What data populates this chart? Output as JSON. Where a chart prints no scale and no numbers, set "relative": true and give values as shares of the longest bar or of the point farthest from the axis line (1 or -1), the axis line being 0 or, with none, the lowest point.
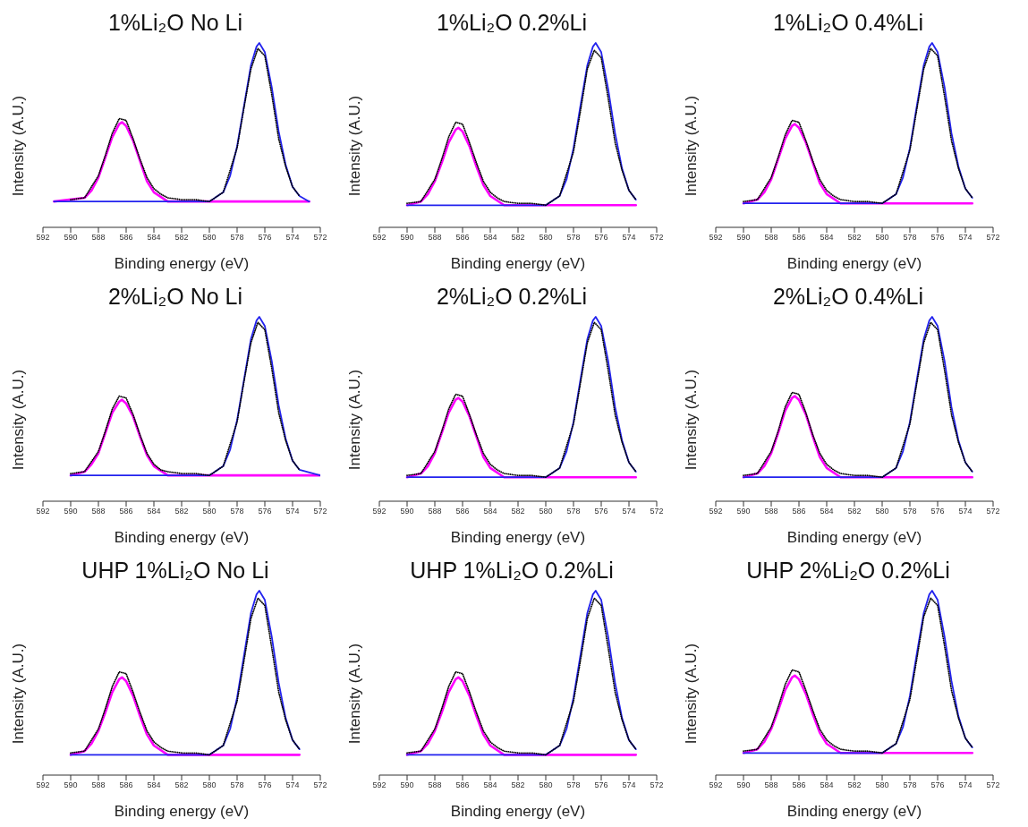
{
  "chart_data": [
    {
      "type": "line",
      "title": "1%Li₂O No Li",
      "xlabel": "Binding energy (eV)",
      "ylabel": "Intensity (A.U.)",
      "relative": true,
      "xlim": [
        592,
        572
      ],
      "xticks": [
        592,
        590,
        588,
        586,
        584,
        582,
        580,
        578,
        576,
        574,
        572
      ],
      "series": [
        {
          "color": "#ff00ff",
          "x": [
            591.2,
            589,
            588.5,
            588,
            587.5,
            587,
            586.5,
            586.3,
            586,
            585.5,
            585,
            584.5,
            584,
            583,
            572.8
          ],
          "values": [
            0.14,
            0.16,
            0.2,
            0.27,
            0.38,
            0.49,
            0.56,
            0.57,
            0.55,
            0.47,
            0.36,
            0.25,
            0.19,
            0.14,
            0.14
          ]
        },
        {
          "color": "#2222ee",
          "x": [
            591.2,
            580,
            579,
            578.5,
            578,
            577.5,
            577,
            576.6,
            576.4,
            576,
            575.5,
            575,
            574.5,
            574,
            573.5,
            572.8
          ],
          "values": [
            0.14,
            0.14,
            0.19,
            0.28,
            0.44,
            0.66,
            0.88,
            0.98,
            1,
            0.95,
            0.76,
            0.52,
            0.34,
            0.22,
            0.17,
            0.14
          ]
        },
        {
          "line_style": "dotted",
          "color": "#000000",
          "x": [
            590,
            589,
            588,
            587.5,
            587,
            586.5,
            586,
            585.5,
            585,
            584.5,
            584,
            583.5,
            583,
            582,
            581,
            580,
            579,
            578,
            577.5,
            577,
            576.5,
            576,
            575.5,
            575,
            574.5,
            574,
            573.5
          ],
          "values": [
            0.15,
            0.16,
            0.28,
            0.39,
            0.51,
            0.59,
            0.58,
            0.48,
            0.37,
            0.27,
            0.21,
            0.18,
            0.16,
            0.15,
            0.15,
            0.14,
            0.19,
            0.43,
            0.65,
            0.86,
            0.97,
            0.93,
            0.72,
            0.48,
            0.33,
            0.22,
            0.17
          ]
        }
      ]
    },
    {
      "type": "line",
      "title": "1%Li₂O 0.2%Li",
      "xlabel": "Binding energy (eV)",
      "ylabel": "Intensity (A.U.)",
      "relative": true,
      "xlim": [
        592,
        572
      ],
      "xticks": [
        592,
        590,
        588,
        586,
        584,
        582,
        580,
        578,
        576,
        574,
        572
      ],
      "series": [
        {
          "color": "#ff00ff",
          "x": [
            590,
            589,
            588.5,
            588,
            587.5,
            587,
            586.5,
            586.3,
            586,
            585.5,
            585,
            584.5,
            584,
            583,
            573.5
          ],
          "values": [
            0.12,
            0.14,
            0.18,
            0.25,
            0.35,
            0.46,
            0.53,
            0.54,
            0.52,
            0.44,
            0.33,
            0.23,
            0.17,
            0.12,
            0.12
          ]
        },
        {
          "color": "#2222ee",
          "x": [
            590,
            580,
            579,
            578.5,
            578,
            577.5,
            577,
            576.6,
            576.4,
            576,
            575.5,
            575,
            574.5,
            574,
            573.5
          ],
          "values": [
            0.12,
            0.12,
            0.17,
            0.26,
            0.43,
            0.66,
            0.88,
            0.98,
            1,
            0.95,
            0.75,
            0.51,
            0.32,
            0.2,
            0.15
          ]
        },
        {
          "line_style": "dotted",
          "color": "#000000",
          "x": [
            590,
            589,
            588,
            587.5,
            587,
            586.5,
            586,
            585.5,
            585,
            584.5,
            584,
            583.5,
            583,
            582,
            581,
            580,
            579,
            578,
            577.5,
            577,
            576.5,
            576,
            575.5,
            575,
            574.5,
            574,
            573.5
          ],
          "values": [
            0.13,
            0.14,
            0.26,
            0.37,
            0.49,
            0.57,
            0.56,
            0.46,
            0.35,
            0.25,
            0.19,
            0.16,
            0.14,
            0.13,
            0.13,
            0.12,
            0.17,
            0.41,
            0.63,
            0.86,
            0.96,
            0.92,
            0.7,
            0.46,
            0.31,
            0.2,
            0.15
          ]
        }
      ]
    },
    {
      "type": "line",
      "title": "1%Li₂O 0.4%Li",
      "xlabel": "Binding energy (eV)",
      "ylabel": "Intensity (A.U.)",
      "relative": true,
      "xlim": [
        592,
        572
      ],
      "xticks": [
        592,
        590,
        588,
        586,
        584,
        582,
        580,
        578,
        576,
        574,
        572
      ],
      "series": [
        {
          "color": "#ff00ff",
          "x": [
            590,
            589,
            588.5,
            588,
            587.5,
            587,
            586.5,
            586.3,
            586,
            585.5,
            585,
            584.5,
            584,
            583,
            573.5
          ],
          "values": [
            0.13,
            0.15,
            0.19,
            0.26,
            0.37,
            0.48,
            0.55,
            0.56,
            0.54,
            0.46,
            0.35,
            0.24,
            0.18,
            0.13,
            0.13
          ]
        },
        {
          "color": "#2222ee",
          "x": [
            590,
            580,
            579,
            578.5,
            578,
            577.5,
            577,
            576.6,
            576.4,
            576,
            575.5,
            575,
            574.5,
            574,
            573.5
          ],
          "values": [
            0.13,
            0.13,
            0.18,
            0.27,
            0.43,
            0.66,
            0.88,
            0.98,
            1,
            0.95,
            0.76,
            0.51,
            0.33,
            0.21,
            0.16
          ]
        },
        {
          "line_style": "dotted",
          "color": "#000000",
          "x": [
            590,
            589,
            588,
            587.5,
            587,
            586.5,
            586,
            585.5,
            585,
            584.5,
            584,
            583.5,
            583,
            582,
            581,
            580,
            579,
            578,
            577.5,
            577,
            576.5,
            576,
            575.5,
            575,
            574.5,
            574,
            573.5
          ],
          "values": [
            0.14,
            0.15,
            0.27,
            0.38,
            0.5,
            0.58,
            0.57,
            0.47,
            0.36,
            0.26,
            0.2,
            0.17,
            0.15,
            0.14,
            0.14,
            0.13,
            0.18,
            0.42,
            0.64,
            0.86,
            0.97,
            0.93,
            0.71,
            0.47,
            0.32,
            0.21,
            0.16
          ]
        }
      ]
    },
    {
      "type": "line",
      "title": "2%Li₂O No Li",
      "xlabel": "Binding energy (eV)",
      "ylabel": "Intensity (A.U.)",
      "relative": true,
      "xlim": [
        592,
        572
      ],
      "xticks": [
        592,
        590,
        588,
        586,
        584,
        582,
        580,
        578,
        576,
        574,
        572
      ],
      "series": [
        {
          "color": "#ff00ff",
          "x": [
            590,
            589,
            588.5,
            588,
            587.5,
            587,
            586.5,
            586.3,
            586,
            585.5,
            585,
            584.5,
            584,
            583,
            572
          ],
          "values": [
            0.14,
            0.16,
            0.2,
            0.26,
            0.37,
            0.48,
            0.54,
            0.55,
            0.53,
            0.46,
            0.35,
            0.25,
            0.19,
            0.14,
            0.14
          ]
        },
        {
          "color": "#2222ee",
          "x": [
            590,
            580,
            579,
            578.5,
            578,
            577.5,
            577,
            576.6,
            576.4,
            576,
            575.5,
            575,
            574.5,
            574,
            573.5,
            572
          ],
          "values": [
            0.14,
            0.14,
            0.19,
            0.28,
            0.44,
            0.66,
            0.88,
            0.98,
            1,
            0.95,
            0.76,
            0.52,
            0.34,
            0.22,
            0.17,
            0.14
          ]
        },
        {
          "line_style": "dotted",
          "color": "#000000",
          "x": [
            590,
            589,
            588,
            587.5,
            587,
            586.5,
            586,
            585.5,
            585,
            584.5,
            584,
            583.5,
            583,
            582,
            581,
            580,
            579,
            578,
            577.5,
            577,
            576.5,
            576,
            575.5,
            575,
            574.5,
            574,
            573.5
          ],
          "values": [
            0.15,
            0.16,
            0.27,
            0.38,
            0.5,
            0.57,
            0.56,
            0.47,
            0.36,
            0.26,
            0.2,
            0.17,
            0.16,
            0.15,
            0.15,
            0.14,
            0.19,
            0.43,
            0.65,
            0.86,
            0.97,
            0.93,
            0.72,
            0.48,
            0.33,
            0.22,
            0.17
          ]
        }
      ]
    },
    {
      "type": "line",
      "title": "2%Li₂O 0.2%Li",
      "xlabel": "Binding energy (eV)",
      "ylabel": "Intensity (A.U.)",
      "relative": true,
      "xlim": [
        592,
        572
      ],
      "xticks": [
        592,
        590,
        588,
        586,
        584,
        582,
        580,
        578,
        576,
        574,
        572
      ],
      "series": [
        {
          "color": "#ff00ff",
          "x": [
            590,
            589,
            588.5,
            588,
            587.5,
            587,
            586.5,
            586.3,
            586,
            585.5,
            585,
            584.5,
            584,
            583,
            573.5
          ],
          "values": [
            0.13,
            0.15,
            0.19,
            0.26,
            0.37,
            0.48,
            0.55,
            0.56,
            0.54,
            0.46,
            0.35,
            0.24,
            0.18,
            0.13,
            0.13
          ]
        },
        {
          "color": "#2222ee",
          "x": [
            590,
            580,
            579,
            578.5,
            578,
            577.5,
            577,
            576.6,
            576.4,
            576,
            575.5,
            575,
            574.5,
            574,
            573.5
          ],
          "values": [
            0.13,
            0.13,
            0.18,
            0.27,
            0.43,
            0.66,
            0.88,
            0.98,
            1,
            0.95,
            0.76,
            0.51,
            0.33,
            0.21,
            0.16
          ]
        },
        {
          "line_style": "dotted",
          "color": "#000000",
          "x": [
            590,
            589,
            588,
            587.5,
            587,
            586.5,
            586,
            585.5,
            585,
            584.5,
            584,
            583.5,
            583,
            582,
            581,
            580,
            579,
            578,
            577.5,
            577,
            576.5,
            576,
            575.5,
            575,
            574.5,
            574,
            573.5
          ],
          "values": [
            0.14,
            0.15,
            0.27,
            0.38,
            0.5,
            0.58,
            0.57,
            0.47,
            0.36,
            0.26,
            0.2,
            0.17,
            0.15,
            0.14,
            0.14,
            0.13,
            0.18,
            0.42,
            0.64,
            0.86,
            0.97,
            0.93,
            0.71,
            0.47,
            0.32,
            0.21,
            0.16
          ]
        }
      ]
    },
    {
      "type": "line",
      "title": "2%Li₂O 0.4%Li",
      "xlabel": "Binding energy (eV)",
      "ylabel": "Intensity (A.U.)",
      "relative": true,
      "xlim": [
        592,
        572
      ],
      "xticks": [
        592,
        590,
        588,
        586,
        584,
        582,
        580,
        578,
        576,
        574,
        572
      ],
      "series": [
        {
          "color": "#ff00ff",
          "x": [
            590,
            589,
            588.5,
            588,
            587.5,
            587,
            586.5,
            586.3,
            586,
            585.5,
            585,
            584.5,
            584,
            583,
            573.5
          ],
          "values": [
            0.13,
            0.15,
            0.19,
            0.26,
            0.37,
            0.49,
            0.56,
            0.57,
            0.55,
            0.47,
            0.35,
            0.24,
            0.18,
            0.13,
            0.13
          ]
        },
        {
          "color": "#2222ee",
          "x": [
            590,
            580,
            579,
            578.5,
            578,
            577.5,
            577,
            576.6,
            576.4,
            576,
            575.5,
            575,
            574.5,
            574,
            573.5
          ],
          "values": [
            0.13,
            0.13,
            0.18,
            0.27,
            0.43,
            0.66,
            0.88,
            0.98,
            1,
            0.95,
            0.76,
            0.51,
            0.33,
            0.21,
            0.16
          ]
        },
        {
          "line_style": "dotted",
          "color": "#000000",
          "x": [
            590,
            589,
            588,
            587.5,
            587,
            586.5,
            586,
            585.5,
            585,
            584.5,
            584,
            583.5,
            583,
            582,
            581,
            580,
            579,
            578,
            577.5,
            577,
            576.5,
            576,
            575.5,
            575,
            574.5,
            574,
            573.5
          ],
          "values": [
            0.14,
            0.15,
            0.27,
            0.38,
            0.51,
            0.59,
            0.58,
            0.48,
            0.36,
            0.26,
            0.2,
            0.17,
            0.15,
            0.14,
            0.14,
            0.13,
            0.18,
            0.42,
            0.64,
            0.86,
            0.97,
            0.93,
            0.71,
            0.47,
            0.32,
            0.21,
            0.16
          ]
        }
      ]
    },
    {
      "type": "line",
      "title": "UHP 1%Li₂O No Li",
      "xlabel": "Binding energy (eV)",
      "ylabel": "Intensity (A.U.)",
      "relative": true,
      "xlim": [
        592,
        572
      ],
      "xticks": [
        592,
        590,
        588,
        586,
        584,
        582,
        580,
        578,
        576,
        574,
        572
      ],
      "series": [
        {
          "color": "#ff00ff",
          "x": [
            590,
            589,
            588.5,
            588,
            587.5,
            587,
            586.5,
            586.3,
            586,
            585.5,
            585,
            584.5,
            584,
            583,
            573.5
          ],
          "values": [
            0.11,
            0.13,
            0.17,
            0.24,
            0.34,
            0.45,
            0.52,
            0.53,
            0.51,
            0.43,
            0.32,
            0.22,
            0.16,
            0.11,
            0.11
          ]
        },
        {
          "color": "#2222ee",
          "x": [
            590,
            580,
            579,
            578.5,
            578,
            577.5,
            577,
            576.6,
            576.4,
            576,
            575.5,
            575,
            574.5,
            574,
            573.5
          ],
          "values": [
            0.11,
            0.11,
            0.16,
            0.25,
            0.42,
            0.65,
            0.88,
            0.98,
            1,
            0.95,
            0.75,
            0.5,
            0.31,
            0.19,
            0.14
          ]
        },
        {
          "line_style": "dotted",
          "color": "#000000",
          "x": [
            590,
            589,
            588,
            587.5,
            587,
            586.5,
            586,
            585.5,
            585,
            584.5,
            584,
            583.5,
            583,
            582,
            581,
            580,
            579,
            578,
            577.5,
            577,
            576.5,
            576,
            575.5,
            575,
            574.5,
            574,
            573.5
          ],
          "values": [
            0.12,
            0.13,
            0.25,
            0.36,
            0.48,
            0.56,
            0.55,
            0.45,
            0.34,
            0.24,
            0.18,
            0.15,
            0.13,
            0.12,
            0.12,
            0.11,
            0.16,
            0.4,
            0.62,
            0.85,
            0.96,
            0.92,
            0.69,
            0.45,
            0.3,
            0.19,
            0.14
          ]
        }
      ]
    },
    {
      "type": "line",
      "title": "UHP 1%Li₂O 0.2%Li",
      "xlabel": "Binding energy (eV)",
      "ylabel": "Intensity (A.U.)",
      "relative": true,
      "xlim": [
        592,
        572
      ],
      "xticks": [
        592,
        590,
        588,
        586,
        584,
        582,
        580,
        578,
        576,
        574,
        572
      ],
      "series": [
        {
          "color": "#ff00ff",
          "x": [
            590,
            589,
            588.5,
            588,
            587.5,
            587,
            586.5,
            586.3,
            586,
            585.5,
            585,
            584.5,
            584,
            583,
            573.5
          ],
          "values": [
            0.11,
            0.13,
            0.17,
            0.24,
            0.34,
            0.45,
            0.52,
            0.53,
            0.51,
            0.43,
            0.32,
            0.22,
            0.16,
            0.11,
            0.11
          ]
        },
        {
          "color": "#2222ee",
          "x": [
            590,
            580,
            579,
            578.5,
            578,
            577.5,
            577,
            576.6,
            576.4,
            576,
            575.5,
            575,
            574.5,
            574,
            573.5
          ],
          "values": [
            0.11,
            0.11,
            0.16,
            0.25,
            0.42,
            0.65,
            0.88,
            0.98,
            1,
            0.95,
            0.75,
            0.5,
            0.31,
            0.19,
            0.14
          ]
        },
        {
          "line_style": "dotted",
          "color": "#000000",
          "x": [
            590,
            589,
            588,
            587.5,
            587,
            586.5,
            586,
            585.5,
            585,
            584.5,
            584,
            583.5,
            583,
            582,
            581,
            580,
            579,
            578,
            577.5,
            577,
            576.5,
            576,
            575.5,
            575,
            574.5,
            574,
            573.5
          ],
          "values": [
            0.12,
            0.13,
            0.25,
            0.36,
            0.48,
            0.56,
            0.55,
            0.45,
            0.34,
            0.24,
            0.18,
            0.15,
            0.13,
            0.12,
            0.12,
            0.11,
            0.16,
            0.4,
            0.62,
            0.85,
            0.96,
            0.92,
            0.69,
            0.45,
            0.3,
            0.19,
            0.14
          ]
        }
      ]
    },
    {
      "type": "line",
      "title": "UHP 2%Li₂O 0.2%Li",
      "xlabel": "Binding energy (eV)",
      "ylabel": "Intensity (A.U.)",
      "relative": true,
      "xlim": [
        592,
        572
      ],
      "xticks": [
        592,
        590,
        588,
        586,
        584,
        582,
        580,
        578,
        576,
        574,
        572
      ],
      "series": [
        {
          "color": "#ff00ff",
          "x": [
            590,
            589,
            588.5,
            588,
            587.5,
            587,
            586.5,
            586.3,
            586,
            585.5,
            585,
            584.5,
            584,
            583,
            573.5
          ],
          "values": [
            0.12,
            0.14,
            0.18,
            0.25,
            0.35,
            0.46,
            0.53,
            0.54,
            0.52,
            0.44,
            0.33,
            0.23,
            0.17,
            0.12,
            0.12
          ]
        },
        {
          "color": "#2222ee",
          "x": [
            590,
            580,
            579,
            578.5,
            578,
            577.5,
            577,
            576.6,
            576.4,
            576,
            575.5,
            575,
            574.5,
            574,
            573.5
          ],
          "values": [
            0.12,
            0.12,
            0.17,
            0.26,
            0.43,
            0.66,
            0.88,
            0.98,
            1,
            0.95,
            0.75,
            0.51,
            0.32,
            0.2,
            0.15
          ]
        },
        {
          "line_style": "dotted",
          "color": "#000000",
          "x": [
            590,
            589,
            588,
            587.5,
            587,
            586.5,
            586,
            585.5,
            585,
            584.5,
            584,
            583.5,
            583,
            582,
            581,
            580,
            579,
            578,
            577.5,
            577,
            576.5,
            576,
            575.5,
            575,
            574.5,
            574,
            573.5
          ],
          "values": [
            0.13,
            0.14,
            0.26,
            0.37,
            0.49,
            0.57,
            0.56,
            0.46,
            0.35,
            0.25,
            0.19,
            0.16,
            0.14,
            0.13,
            0.13,
            0.12,
            0.17,
            0.41,
            0.63,
            0.86,
            0.96,
            0.92,
            0.7,
            0.46,
            0.31,
            0.2,
            0.15
          ]
        }
      ]
    }
  ]
}
